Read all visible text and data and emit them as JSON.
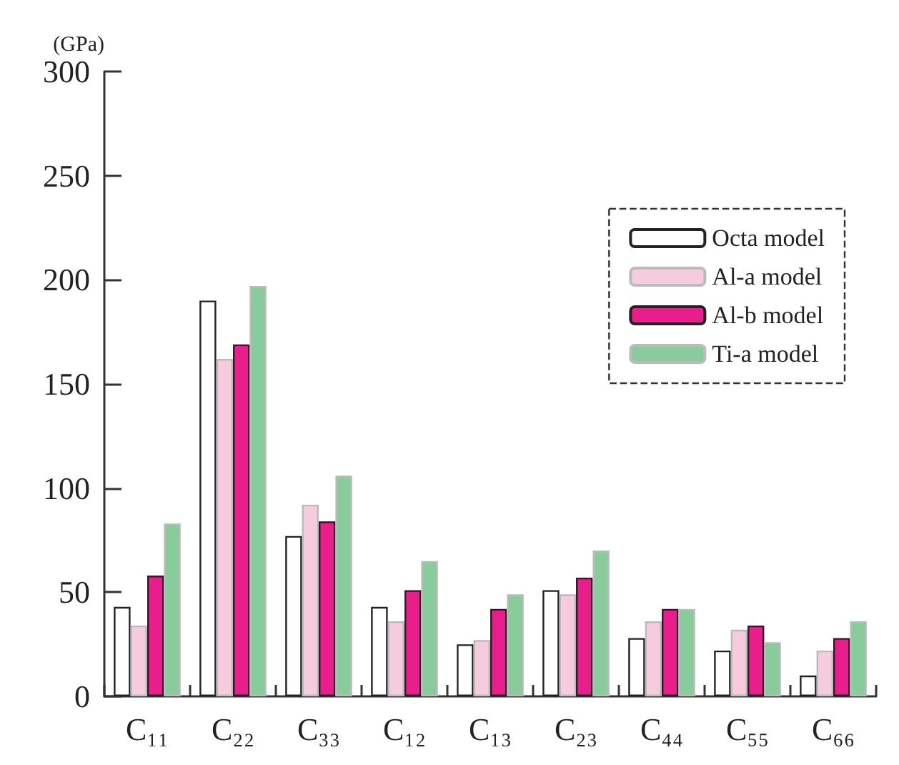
{
  "chart_data": {
    "type": "bar",
    "ylabel": "(GPa)",
    "categories": [
      "C₁₁",
      "C₂₂",
      "C₃₃",
      "C₁₂",
      "C₁₃",
      "C₂₃",
      "C₄₄",
      "C₅₅",
      "C₆₆"
    ],
    "series": [
      {
        "name": "Octa model",
        "color": "#ffffff",
        "values": [
          43,
          190,
          77,
          43,
          25,
          51,
          28,
          22,
          10
        ]
      },
      {
        "name": "Al-a model",
        "color": "#f6cbde",
        "values": [
          34,
          162,
          92,
          36,
          27,
          49,
          36,
          32,
          22
        ]
      },
      {
        "name": "Al-b model",
        "color": "#e91e8c",
        "values": [
          58,
          169,
          84,
          51,
          42,
          57,
          42,
          34,
          28
        ]
      },
      {
        "name": "Ti-a model",
        "color": "#88cc9c",
        "values": [
          83,
          197,
          106,
          65,
          49,
          70,
          42,
          26,
          36
        ]
      }
    ],
    "ylim": [
      0,
      300
    ],
    "yticks": [
      0,
      50,
      100,
      150,
      200,
      250,
      300
    ],
    "grid": false,
    "legend": "top right"
  }
}
